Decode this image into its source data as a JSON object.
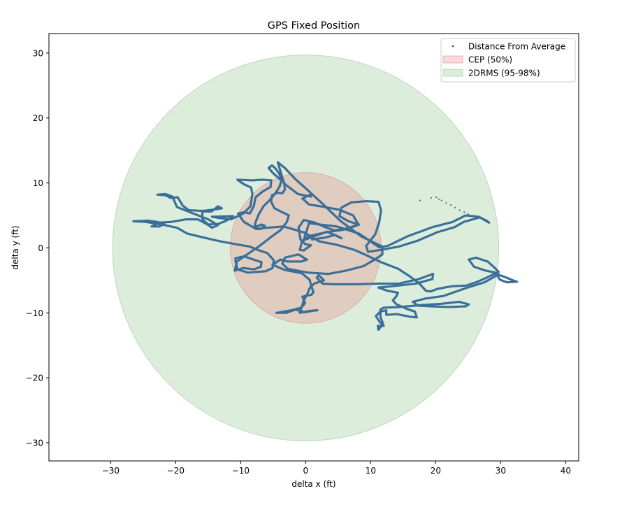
{
  "chart_data": {
    "type": "scatter",
    "title": "GPS Fixed Position",
    "xlabel": "delta x (ft)",
    "ylabel": "delta y (ft)",
    "xlim": [
      -39.5,
      42
    ],
    "ylim": [
      -32.8,
      33
    ],
    "xticks": [
      -30,
      -20,
      -10,
      0,
      10,
      20,
      30,
      40
    ],
    "yticks": [
      -30,
      -20,
      -10,
      0,
      10,
      20,
      30
    ],
    "grid": false,
    "legend_position": "top-right",
    "circles": [
      {
        "name": "CEP (50%)",
        "radius": 11.6,
        "fill": "#f08080",
        "opacity": 0.3,
        "edge": "#d08080"
      },
      {
        "name": "2DRMS (95-98%)",
        "radius": 29.7,
        "fill": "#8cc28c",
        "opacity": 0.3,
        "edge": "#88bb88"
      }
    ],
    "series": [
      {
        "name": "Distance From Average",
        "color": "#3a6f98",
        "track": [
          [
            1,
            1.3
          ],
          [
            3,
            1.6
          ],
          [
            4.5,
            2.0
          ],
          [
            5.5,
            1.5
          ],
          [
            3.3,
            2.5
          ],
          [
            -0.3,
            1.2
          ],
          [
            0.5,
            3.8
          ],
          [
            4.8,
            3.3
          ],
          [
            8.2,
            2.2
          ],
          [
            11.3,
            0.1
          ],
          [
            12.6,
            0.3
          ],
          [
            15.7,
            1.8
          ],
          [
            19.5,
            3.2
          ],
          [
            22.6,
            4.0
          ],
          [
            24.6,
            5.0
          ],
          [
            26.6,
            4.8
          ],
          [
            27.8,
            4.2
          ],
          [
            28.2,
            3.9
          ],
          [
            26.8,
            4.7
          ],
          [
            24.3,
            4.0
          ],
          [
            22.9,
            3.2
          ],
          [
            20.2,
            2.4
          ],
          [
            17.2,
            1.1
          ],
          [
            14.3,
            0.2
          ],
          [
            11.6,
            -0.3
          ],
          [
            9.6,
            -0.6
          ],
          [
            9.3,
            0.3
          ],
          [
            10.7,
            2.1
          ],
          [
            11.3,
            3.9
          ],
          [
            11.6,
            5.8
          ],
          [
            11.2,
            7.1
          ],
          [
            9.3,
            7.2
          ],
          [
            7.0,
            7.0
          ],
          [
            5.5,
            6.2
          ],
          [
            5.2,
            4.9
          ],
          [
            6.6,
            4.1
          ],
          [
            8.2,
            3.6
          ],
          [
            6.9,
            3.1
          ],
          [
            4.4,
            2.7
          ],
          [
            3.0,
            3.2
          ],
          [
            1.4,
            3.9
          ],
          [
            -0.3,
            4.3
          ],
          [
            -1.1,
            3.1
          ],
          [
            -0.8,
            1.3
          ],
          [
            -0.1,
            0.6
          ],
          [
            0.8,
            0.4
          ],
          [
            -0.3,
            -0.4
          ],
          [
            -0.9,
            -0.3
          ],
          [
            -0.6,
            0.9
          ],
          [
            0.4,
            1.8
          ],
          [
            3.1,
            2.4
          ],
          [
            5.8,
            2.8
          ],
          [
            8.1,
            3.6
          ],
          [
            7.3,
            5.0
          ],
          [
            5.1,
            5.9
          ],
          [
            2.3,
            6.4
          ],
          [
            0.5,
            6.7
          ],
          [
            -0.5,
            7.6
          ],
          [
            0.7,
            8.2
          ],
          [
            0.8,
            7.9
          ],
          [
            -1.2,
            8.3
          ],
          [
            -3.3,
            9.9
          ],
          [
            -4.3,
            13.2
          ],
          [
            -3.2,
            12.3
          ],
          [
            -1.5,
            10.5
          ],
          [
            0.2,
            9.0
          ],
          [
            2.7,
            6.7
          ],
          [
            5.3,
            4.2
          ],
          [
            8.5,
            1.8
          ],
          [
            11.8,
            0.2
          ],
          [
            11.8,
            -1.0
          ],
          [
            10.6,
            -1.8
          ],
          [
            8.9,
            -2.8
          ],
          [
            6.2,
            -3.5
          ],
          [
            3.5,
            -4.0
          ],
          [
            0.3,
            -3.8
          ],
          [
            -2.8,
            -3.2
          ],
          [
            -3.6,
            -2.4
          ],
          [
            -3.2,
            -1.5
          ],
          [
            -1.1,
            -1.0
          ],
          [
            0.2,
            -1.8
          ],
          [
            -0.7,
            -2.1
          ],
          [
            -2.8,
            -2.1
          ],
          [
            -3.9,
            -1.8
          ],
          [
            -5.1,
            -2.6
          ],
          [
            -3.2,
            -3.4
          ],
          [
            -0.6,
            -3.9
          ],
          [
            0.6,
            -4.9
          ],
          [
            0.9,
            -6.0
          ],
          [
            1.2,
            -6.8
          ],
          [
            0.9,
            -7.2
          ],
          [
            -0.5,
            -7.5
          ],
          [
            -0.1,
            -8.5
          ],
          [
            -0.7,
            -9.2
          ],
          [
            -2.2,
            -9.6
          ],
          [
            -4.5,
            -10.0
          ],
          [
            -3.0,
            -10.0
          ],
          [
            -1.6,
            -9.5
          ],
          [
            -0.1,
            -9.9
          ],
          [
            1.0,
            -9.7
          ],
          [
            1.8,
            -9.6
          ],
          [
            0.5,
            -9.7
          ],
          [
            -0.9,
            -10.0
          ],
          [
            -0.3,
            -8.1
          ],
          [
            0.3,
            -7.0
          ],
          [
            0.6,
            -6.2
          ],
          [
            1.3,
            -5.5
          ],
          [
            2.8,
            -5.0
          ],
          [
            2.0,
            -4.2
          ],
          [
            1.7,
            -4.6
          ],
          [
            2.6,
            -5.5
          ],
          [
            4.3,
            -5.6
          ],
          [
            7.2,
            -5.6
          ],
          [
            11.2,
            -5.5
          ],
          [
            14.3,
            -5.5
          ],
          [
            17.4,
            -4.8
          ],
          [
            19.6,
            -4.0
          ],
          [
            19.5,
            -4.8
          ],
          [
            16.9,
            -5.5
          ],
          [
            13.3,
            -5.9
          ],
          [
            11.2,
            -6.1
          ],
          [
            12.6,
            -6.6
          ],
          [
            14.2,
            -6.9
          ],
          [
            13.9,
            -7.5
          ],
          [
            13.4,
            -8.1
          ],
          [
            14.0,
            -8.7
          ],
          [
            15.6,
            -9.4
          ],
          [
            16.8,
            -9.8
          ],
          [
            17.1,
            -10.7
          ],
          [
            16.1,
            -10.6
          ],
          [
            14.0,
            -10.2
          ],
          [
            12.4,
            -10.3
          ],
          [
            12.4,
            -9.6
          ],
          [
            11.5,
            -9.8
          ],
          [
            10.8,
            -10.5
          ],
          [
            11.4,
            -11.4
          ],
          [
            12.0,
            -12.0
          ],
          [
            11.1,
            -12.0
          ],
          [
            11.2,
            -12.6
          ],
          [
            11.9,
            -11.7
          ],
          [
            11.5,
            -10.6
          ],
          [
            11.5,
            -9.5
          ],
          [
            12.0,
            -9.2
          ],
          [
            14.5,
            -9.1
          ],
          [
            17.7,
            -8.8
          ],
          [
            20.9,
            -8.6
          ],
          [
            23.6,
            -8.3
          ],
          [
            25.1,
            -8.7
          ],
          [
            24.6,
            -9.0
          ],
          [
            21.9,
            -9.1
          ],
          [
            19.4,
            -9.0
          ],
          [
            17.3,
            -8.9
          ],
          [
            16.5,
            -8.3
          ],
          [
            18.4,
            -7.8
          ],
          [
            21.2,
            -7.4
          ],
          [
            24.6,
            -6.2
          ],
          [
            27.5,
            -5.3
          ],
          [
            29.6,
            -4.1
          ],
          [
            30.7,
            -4.5
          ],
          [
            31.9,
            -5.0
          ],
          [
            32.5,
            -5.2
          ],
          [
            31.0,
            -5.3
          ],
          [
            29.9,
            -4.9
          ],
          [
            29.2,
            -3.8
          ],
          [
            27.7,
            -3.5
          ],
          [
            25.9,
            -2.9
          ],
          [
            25.1,
            -1.8
          ],
          [
            26.2,
            -1.5
          ],
          [
            28.0,
            -2.1
          ],
          [
            28.9,
            -2.9
          ],
          [
            29.7,
            -3.7
          ],
          [
            27.8,
            -4.6
          ],
          [
            26.2,
            -5.3
          ],
          [
            24.7,
            -5.8
          ],
          [
            22.5,
            -5.9
          ],
          [
            20.3,
            -6.3
          ],
          [
            19.2,
            -6.7
          ],
          [
            18.5,
            -6.6
          ],
          [
            17.4,
            -5.4
          ],
          [
            15.9,
            -4.3
          ],
          [
            14.2,
            -3.2
          ],
          [
            11.6,
            -2.2
          ],
          [
            9.5,
            -1.2
          ],
          [
            7.5,
            -0.3
          ],
          [
            4.7,
            0.5
          ],
          [
            2.1,
            1.0
          ],
          [
            -0.3,
            2.4
          ],
          [
            -3.4,
            3.3
          ],
          [
            -6.0,
            3.1
          ],
          [
            -7.6,
            2.9
          ],
          [
            -9.5,
            4.0
          ],
          [
            -10.4,
            5.3
          ],
          [
            -9.5,
            5.5
          ],
          [
            -8.6,
            5.3
          ],
          [
            -8.0,
            6.4
          ],
          [
            -7.7,
            7.8
          ],
          [
            -6.6,
            8.7
          ],
          [
            -5.4,
            9.4
          ],
          [
            -5.3,
            10.4
          ],
          [
            -6.7,
            10.5
          ],
          [
            -8.1,
            10.4
          ],
          [
            -10.5,
            10.5
          ],
          [
            -9.5,
            9.8
          ],
          [
            -8.4,
            9.3
          ],
          [
            -8.2,
            8.3
          ],
          [
            -8.5,
            6.4
          ],
          [
            -9.6,
            5.3
          ],
          [
            -11.5,
            4.4
          ],
          [
            -13.3,
            4.6
          ],
          [
            -14.4,
            4.8
          ],
          [
            -11.2,
            4.9
          ],
          [
            -12.2,
            4.2
          ],
          [
            -13.4,
            3.7
          ],
          [
            -15.0,
            3.6
          ],
          [
            -15.9,
            4.4
          ],
          [
            -15.9,
            5.0
          ],
          [
            -15.9,
            5.6
          ],
          [
            -14.5,
            5.6
          ],
          [
            -13.5,
            6.4
          ],
          [
            -12.9,
            6.1
          ],
          [
            -14.1,
            5.9
          ],
          [
            -15.9,
            5.7
          ],
          [
            -18.0,
            5.8
          ],
          [
            -18.9,
            6.5
          ],
          [
            -19.7,
            7.8
          ],
          [
            -20.8,
            7.7
          ],
          [
            -21.5,
            8.1
          ],
          [
            -22.8,
            8.2
          ],
          [
            -21.6,
            8.3
          ],
          [
            -20.5,
            7.9
          ],
          [
            -19.8,
            6.3
          ],
          [
            -17.3,
            5.3
          ],
          [
            -15.0,
            4.4
          ],
          [
            -13.5,
            3.5
          ],
          [
            -14.4,
            3.1
          ],
          [
            -15.1,
            3.6
          ],
          [
            -16.6,
            4.4
          ],
          [
            -18.4,
            4.4
          ],
          [
            -20.7,
            4.0
          ],
          [
            -22.5,
            3.9
          ],
          [
            -23.7,
            3.3
          ],
          [
            -22.5,
            3.3
          ],
          [
            -21.8,
            3.7
          ],
          [
            -22.8,
            4.0
          ],
          [
            -24.3,
            4.2
          ],
          [
            -26.5,
            4.1
          ],
          [
            -24.6,
            4.0
          ],
          [
            -22.1,
            3.6
          ],
          [
            -19.8,
            3.1
          ],
          [
            -18.2,
            2.2
          ],
          [
            -15.7,
            1.6
          ],
          [
            -13.1,
            1.0
          ],
          [
            -10.9,
            0.6
          ],
          [
            -8.6,
            0.2
          ],
          [
            -7.4,
            -0.3
          ],
          [
            -5.9,
            -0.8
          ],
          [
            -4.9,
            -1.9
          ],
          [
            -5.1,
            -3.1
          ],
          [
            -6.2,
            -3.6
          ],
          [
            -8.9,
            -3.8
          ],
          [
            -10.5,
            -3.3
          ],
          [
            -10.8,
            -2.0
          ],
          [
            -10.8,
            -1.6
          ],
          [
            -9.5,
            -1.3
          ],
          [
            -8.0,
            -1.8
          ],
          [
            -6.8,
            -2.2
          ],
          [
            -6.9,
            -2.9
          ],
          [
            -7.9,
            -3.3
          ],
          [
            -9.6,
            -3.1
          ],
          [
            -10.9,
            -3.5
          ],
          [
            -10.6,
            -2.1
          ],
          [
            -9.0,
            -1.0
          ],
          [
            -7.1,
            0.3
          ],
          [
            -5.3,
            1.7
          ],
          [
            -3.8,
            2.8
          ],
          [
            -2.9,
            4.0
          ],
          [
            -2.6,
            5.0
          ],
          [
            -3.6,
            5.5
          ],
          [
            -4.8,
            6.1
          ],
          [
            -5.3,
            7.1
          ],
          [
            -5.2,
            8.1
          ],
          [
            -4.3,
            8.5
          ],
          [
            -3.6,
            8.4
          ],
          [
            -3.2,
            9.0
          ],
          [
            -3.3,
            10.0
          ],
          [
            -4.1,
            10.7
          ],
          [
            -5.0,
            11.5
          ],
          [
            -5.7,
            12.3
          ],
          [
            -5.2,
            12.7
          ],
          [
            -4.7,
            12.3
          ],
          [
            -4.1,
            11.5
          ],
          [
            -3.7,
            10.5
          ],
          [
            -4.0,
            9.5
          ],
          [
            -4.6,
            8.5
          ],
          [
            -5.6,
            7.3
          ],
          [
            -6.5,
            6.4
          ],
          [
            -7.2,
            5.2
          ],
          [
            -7.7,
            4.0
          ],
          [
            -7.9,
            3.1
          ],
          [
            -7.0,
            2.9
          ],
          [
            -6.3,
            3.4
          ],
          [
            -6.8,
            3.6
          ],
          [
            -7.8,
            3.2
          ]
        ],
        "outlier_points": [
          [
            17.6,
            7.3
          ],
          [
            19.3,
            7.7
          ],
          [
            20.1,
            7.8
          ],
          [
            20.5,
            7.5
          ],
          [
            20.9,
            7.3
          ],
          [
            21.6,
            6.9
          ],
          [
            22.3,
            6.6
          ],
          [
            23.0,
            6.2
          ],
          [
            23.7,
            5.8
          ],
          [
            24.4,
            5.5
          ],
          [
            25.0,
            5.2
          ],
          [
            25.6,
            4.9
          ]
        ]
      }
    ]
  }
}
